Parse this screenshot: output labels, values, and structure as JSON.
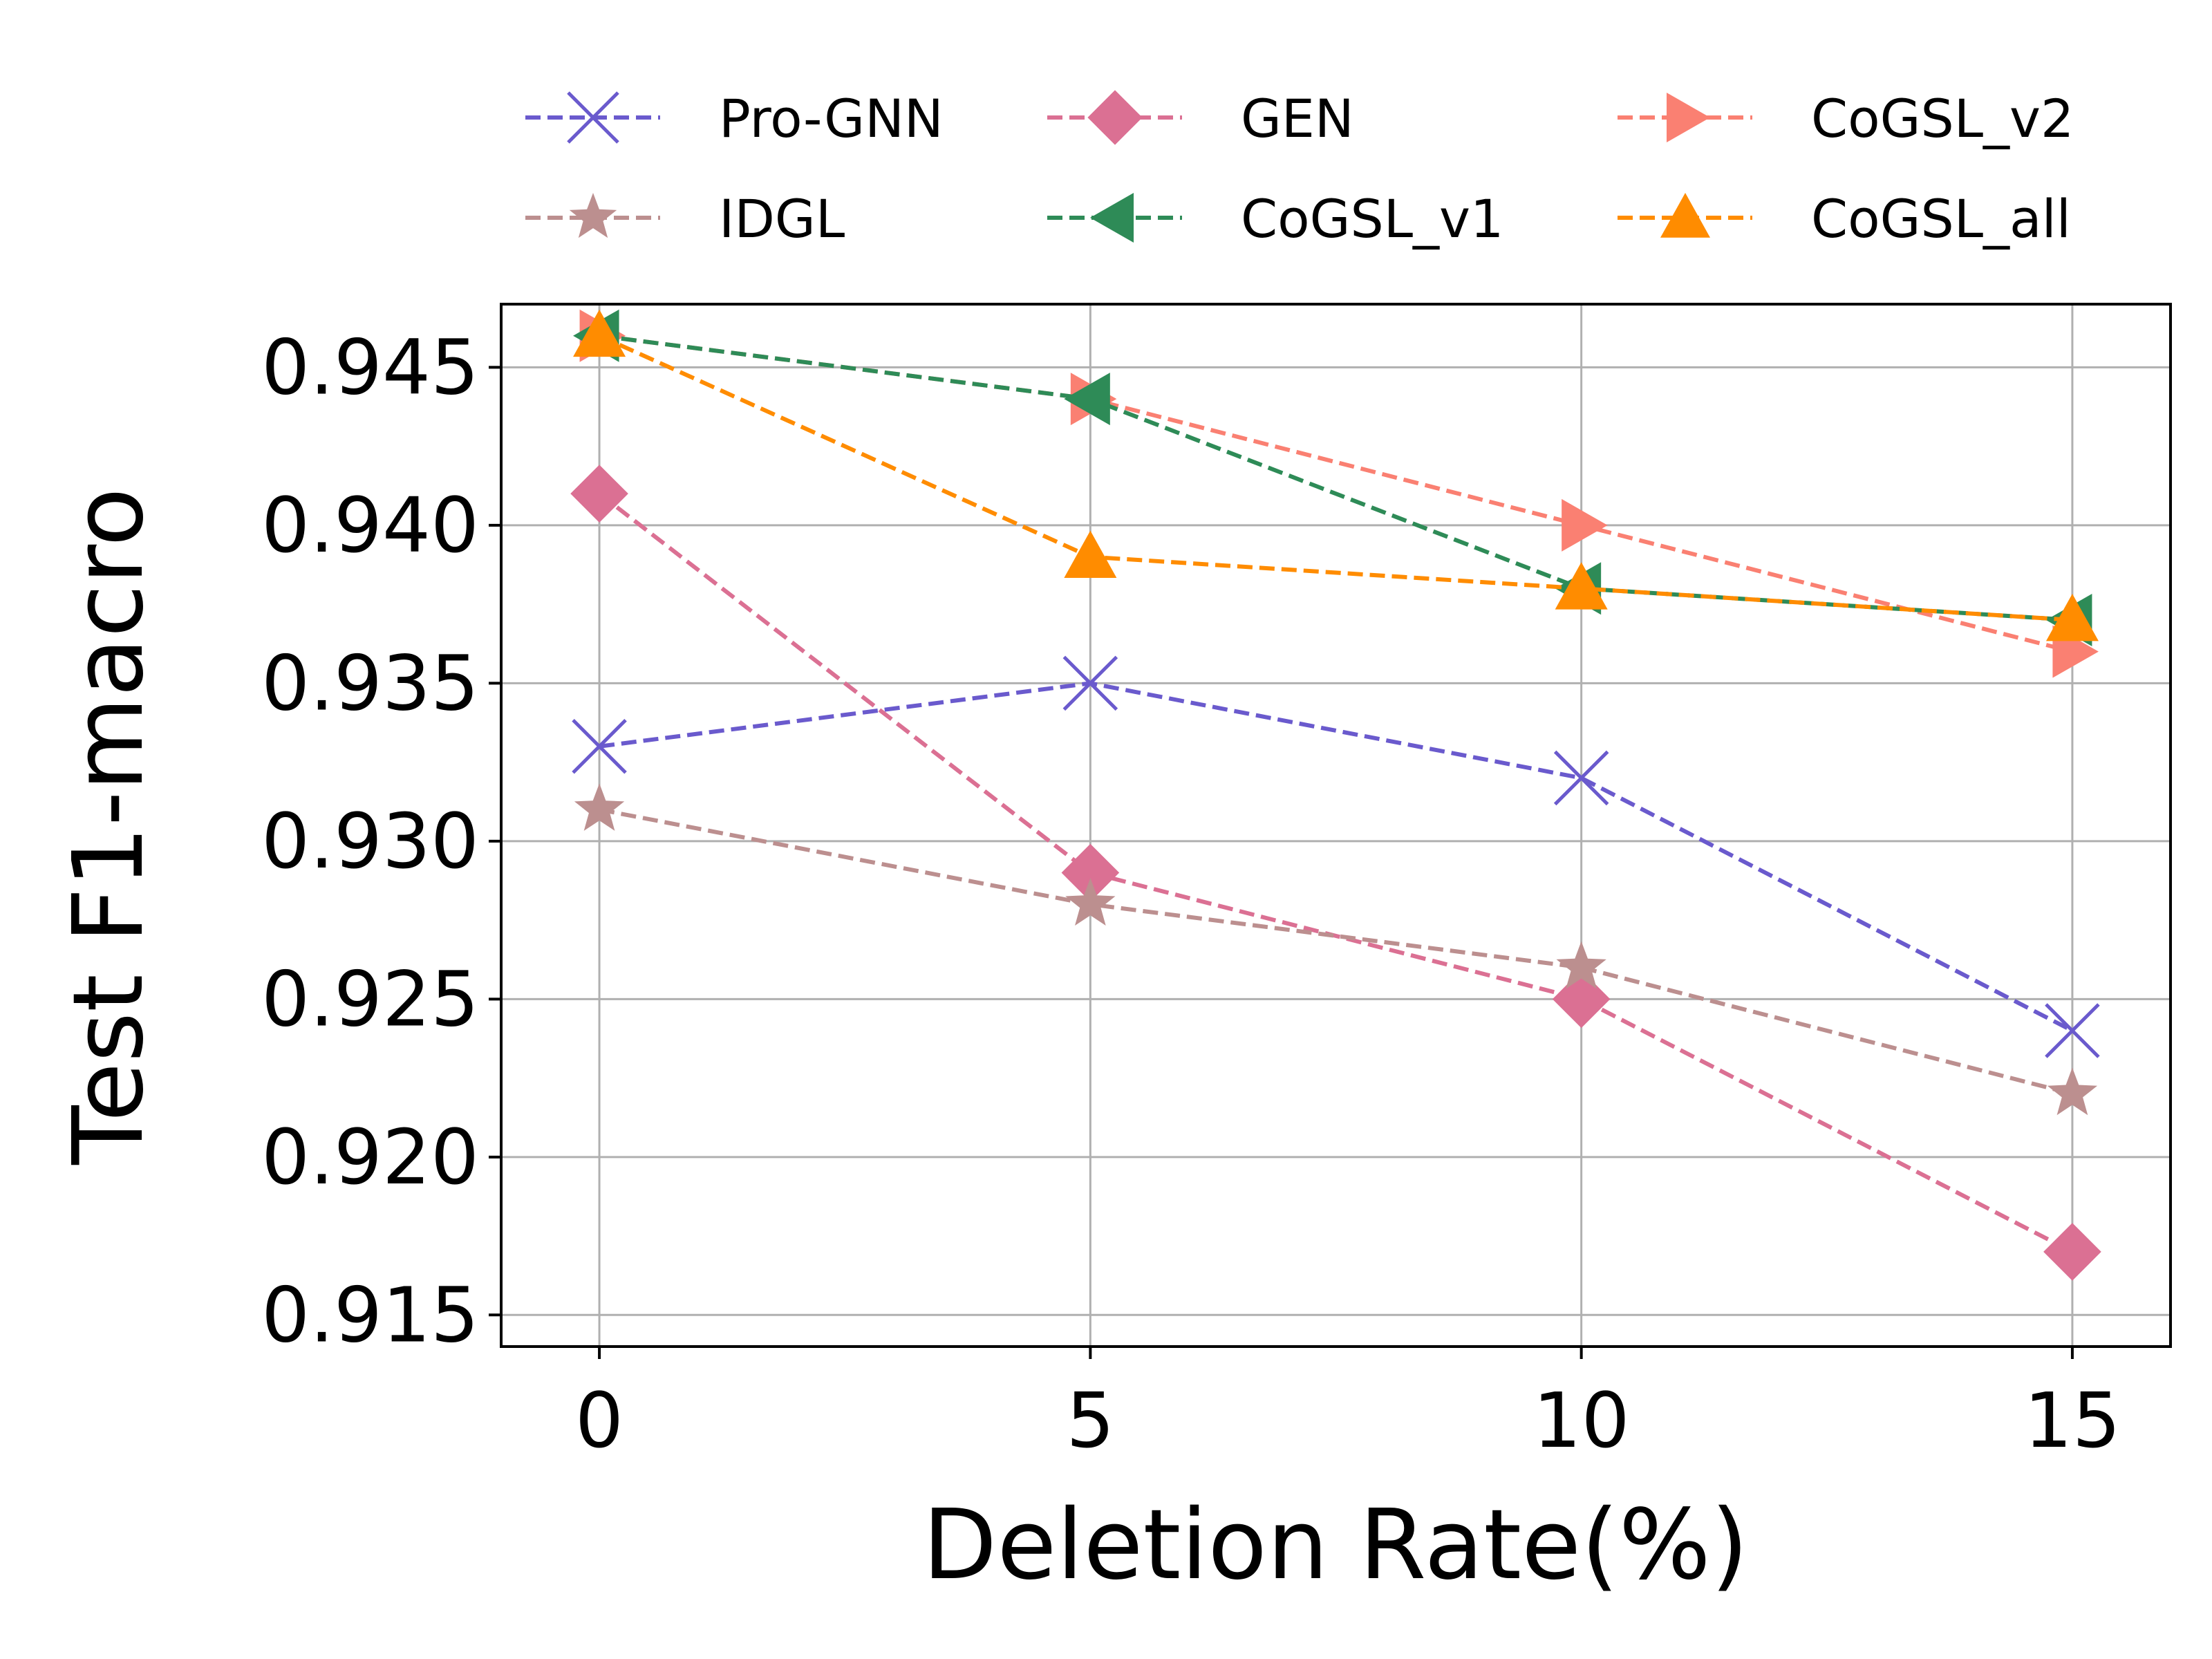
{
  "chart_data": {
    "type": "line",
    "title": "",
    "xlabel": "Deletion Rate(%)",
    "ylabel": "Test F1-macro",
    "x": [
      0,
      5,
      10,
      15
    ],
    "xticks": [
      "0",
      "5",
      "10",
      "15"
    ],
    "yticks": [
      "0.915",
      "0.920",
      "0.925",
      "0.930",
      "0.935",
      "0.940",
      "0.945"
    ],
    "xlim": [
      -1,
      16
    ],
    "ylim": [
      0.914,
      0.947
    ],
    "grid": true,
    "legend_position": "top",
    "series": [
      {
        "name": "Pro-GNN",
        "color": "#6a5acd",
        "marker": "x",
        "values": [
          0.933,
          0.935,
          0.932,
          0.924
        ]
      },
      {
        "name": "GEN",
        "color": "#db7093",
        "marker": "diamond",
        "values": [
          0.941,
          0.929,
          0.925,
          0.917
        ]
      },
      {
        "name": "CoGSL_v2",
        "color": "#fa8072",
        "marker": "triangle-right",
        "values": [
          0.946,
          0.944,
          0.94,
          0.936
        ]
      },
      {
        "name": "IDGL",
        "color": "#bc8f8f",
        "marker": "star",
        "values": [
          0.931,
          0.928,
          0.926,
          0.922
        ]
      },
      {
        "name": "CoGSL_v1",
        "color": "#2e8b57",
        "marker": "triangle-left",
        "values": [
          0.946,
          0.944,
          0.938,
          0.937
        ]
      },
      {
        "name": "CoGSL_all",
        "color": "#ff8c00",
        "marker": "triangle-up",
        "values": [
          0.946,
          0.939,
          0.938,
          0.937
        ]
      }
    ]
  }
}
